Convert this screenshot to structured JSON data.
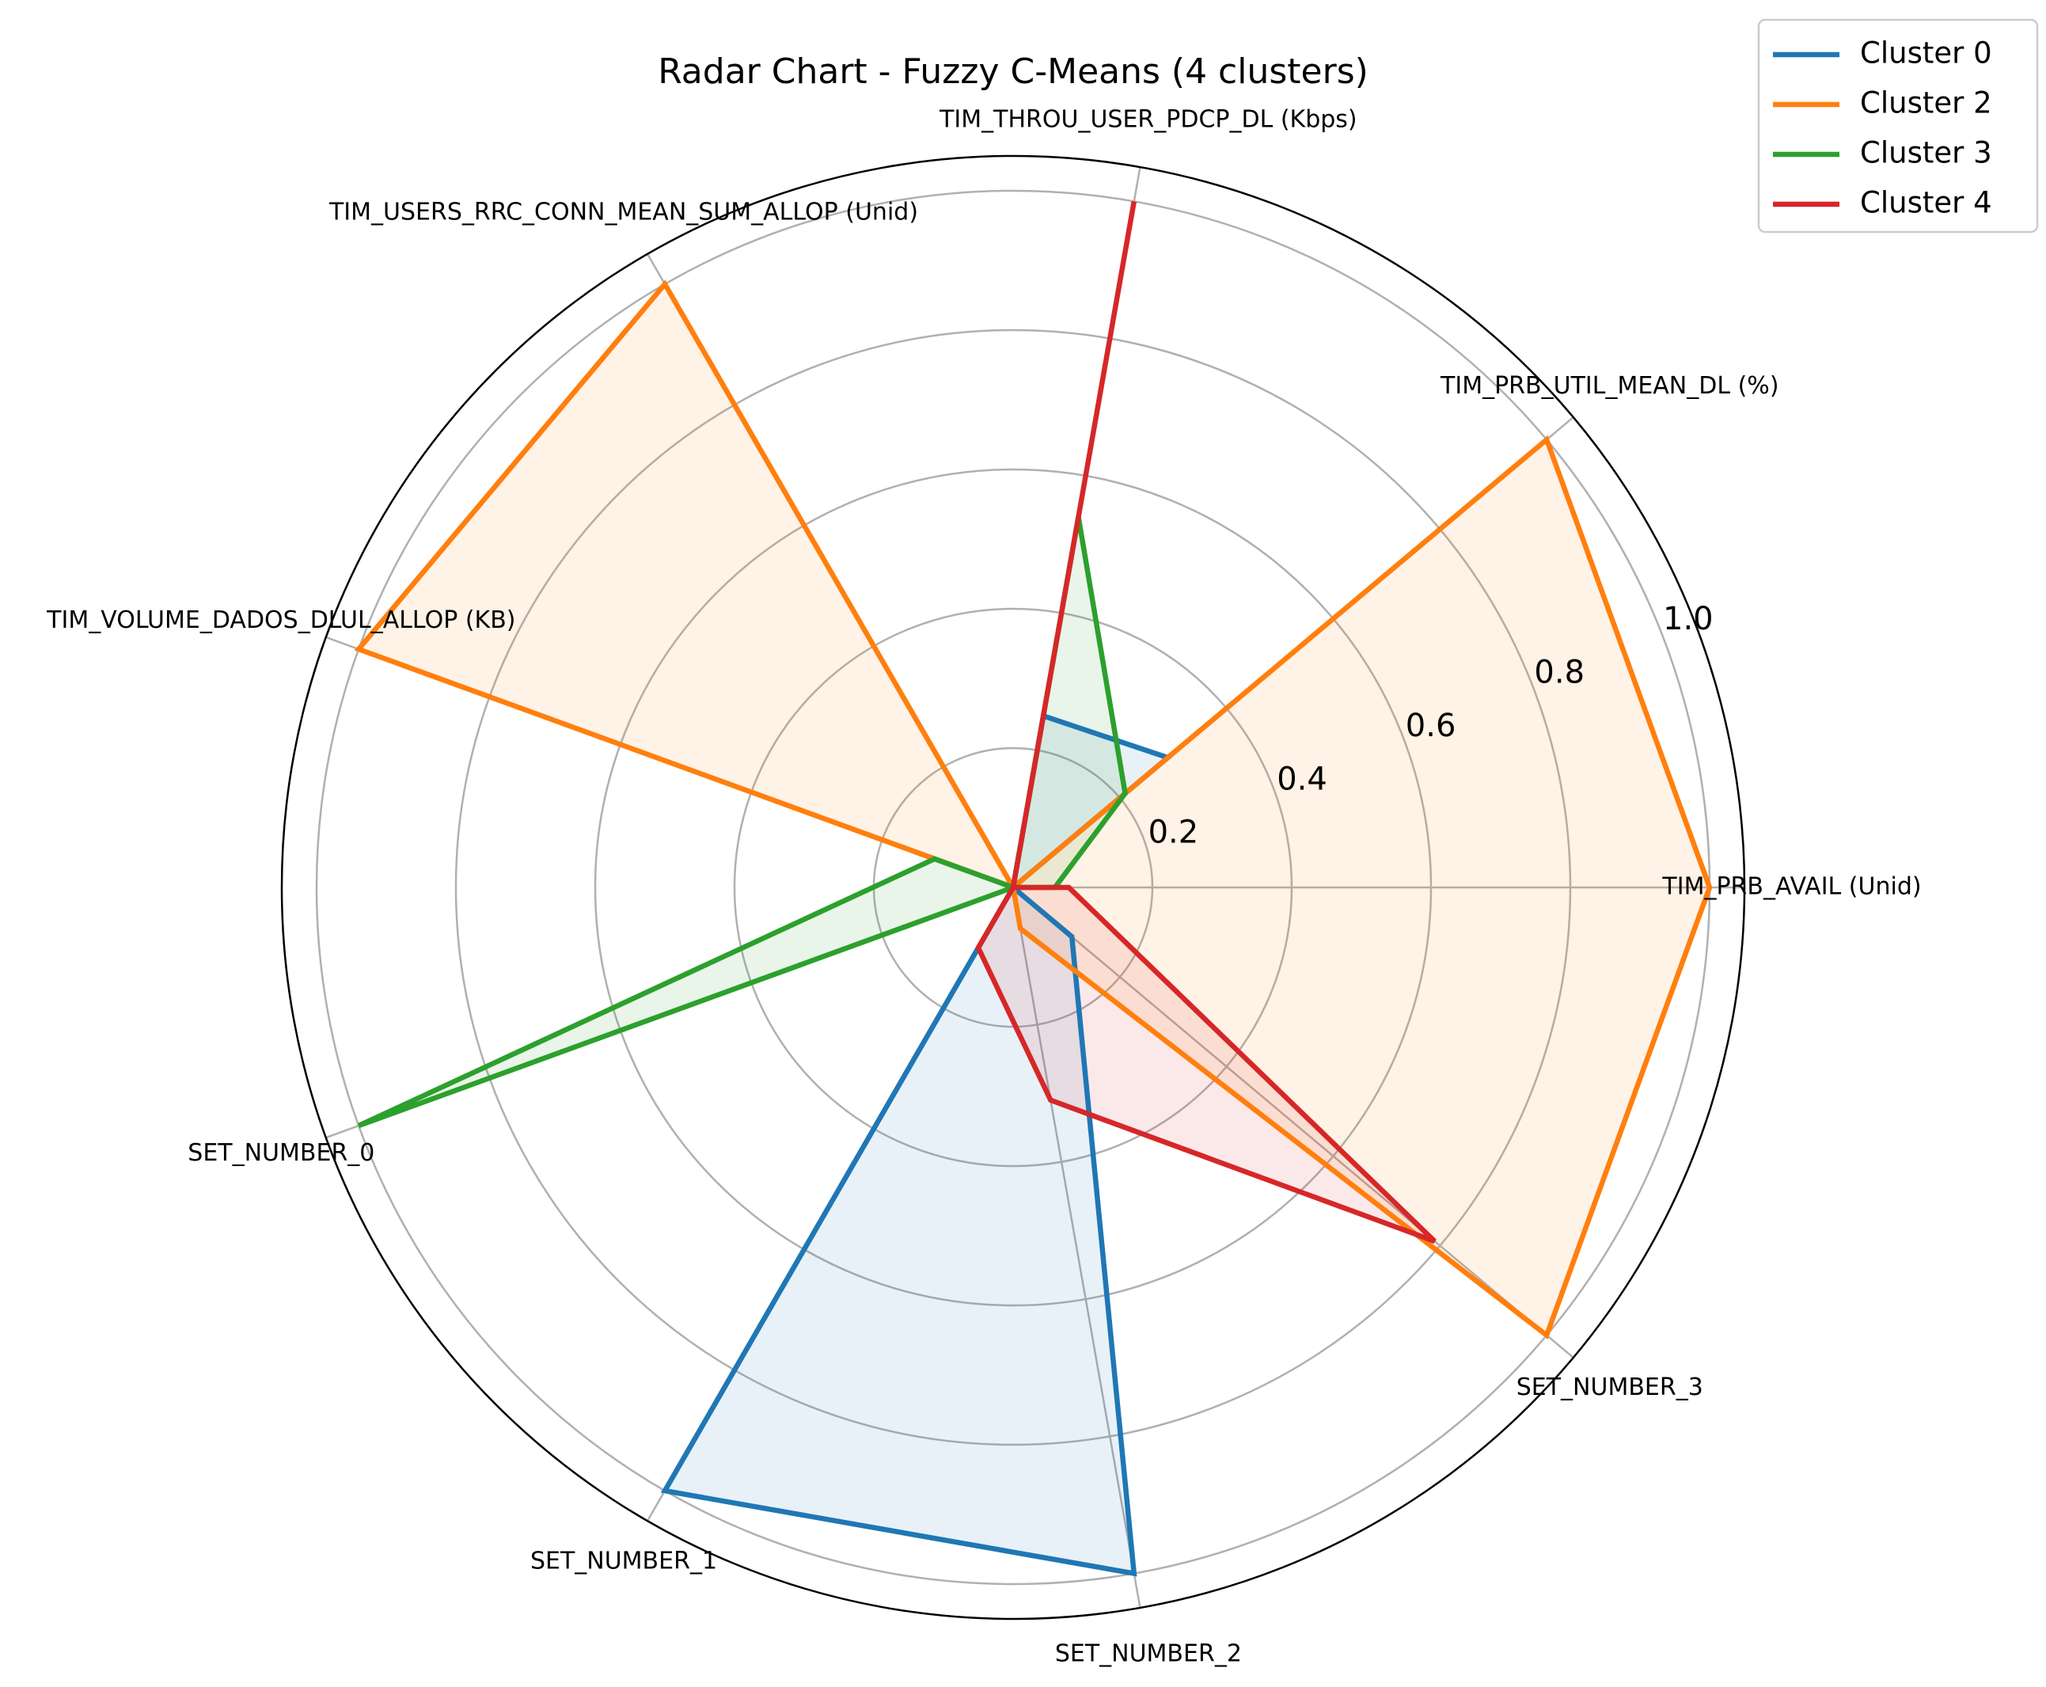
{
  "chart_data": {
    "type": "radar",
    "title": "Radar Chart - Fuzzy C-Means (4 clusters)",
    "axes": [
      "TIM_PRB_AVAIL (Unid)",
      "TIM_PRB_UTIL_MEAN_DL (%)",
      "TIM_THROU_USER_PDCP_DL (Kbps)",
      "TIM_USERS_RRC_CONN_MEAN_SUM_ALLOP (Unid)",
      "TIM_VOLUME_DADOS_DLUL_ALLOP (KB)",
      "SET_NUMBER_0",
      "SET_NUMBER_1",
      "SET_NUMBER_2",
      "SET_NUMBER_3"
    ],
    "rticks": [
      "0.2",
      "0.4",
      "0.6",
      "0.8",
      "1.0"
    ],
    "rlim": [
      0,
      1.05
    ],
    "grid": true,
    "legend_position": "top-right",
    "series": [
      {
        "name": "Cluster 0",
        "color": "#1f77b4",
        "values": [
          0.0,
          0.29,
          0.25,
          0.0,
          0.15,
          0.0,
          1.0,
          1.0,
          0.11
        ]
      },
      {
        "name": "Cluster 2",
        "color": "#ff7f0e",
        "values": [
          1.0,
          1.0,
          0.0,
          1.0,
          1.0,
          0.0,
          0.0,
          0.06,
          1.0
        ]
      },
      {
        "name": "Cluster 3",
        "color": "#2ca02c",
        "values": [
          0.06,
          0.21,
          0.54,
          0.0,
          0.12,
          1.0,
          0.0,
          0.0,
          0.0
        ]
      },
      {
        "name": "Cluster 4",
        "color": "#d62728",
        "values": [
          0.08,
          0.0,
          1.0,
          0.0,
          0.0,
          0.0,
          0.1,
          0.31,
          0.79
        ]
      }
    ]
  }
}
